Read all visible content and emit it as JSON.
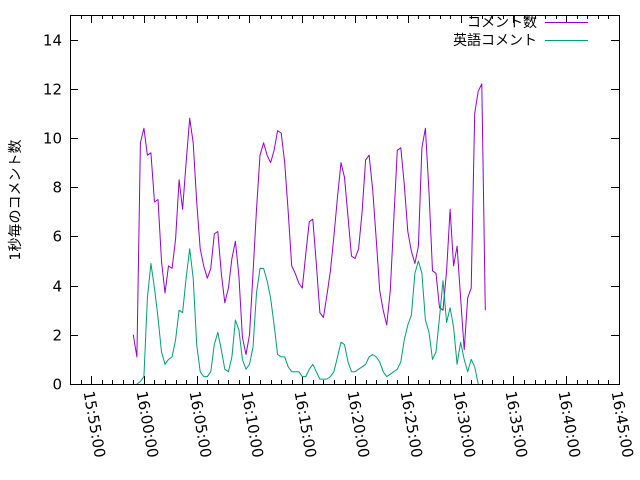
{
  "chart_data": {
    "type": "line",
    "title": "",
    "xlabel": "",
    "ylabel": "1秒毎のコメント数",
    "xlim": [
      "15:53:00",
      "16:45:00"
    ],
    "ylim": [
      0,
      15
    ],
    "x_ticks": [
      "15:55:00",
      "16:00:00",
      "16:05:00",
      "16:10:00",
      "16:15:00",
      "16:20:00",
      "16:25:00",
      "16:30:00",
      "16:35:00",
      "16:40:00",
      "16:45:00"
    ],
    "y_ticks": [
      0,
      2,
      4,
      6,
      8,
      10,
      12,
      14
    ],
    "grid": false,
    "legend_position": "top-right",
    "series": [
      {
        "name": "コメント数",
        "color": "#9400d3",
        "points": [
          [
            "15:59:00",
            2.0
          ],
          [
            "15:59:20",
            1.1
          ],
          [
            "15:59:40",
            9.8
          ],
          [
            "16:00:00",
            10.4
          ],
          [
            "16:00:20",
            9.3
          ],
          [
            "16:00:40",
            9.4
          ],
          [
            "16:01:00",
            7.4
          ],
          [
            "16:01:20",
            7.5
          ],
          [
            "16:01:40",
            5.0
          ],
          [
            "16:02:00",
            3.7
          ],
          [
            "16:02:20",
            4.8
          ],
          [
            "16:02:40",
            4.7
          ],
          [
            "16:03:00",
            5.9
          ],
          [
            "16:03:20",
            8.3
          ],
          [
            "16:03:40",
            7.1
          ],
          [
            "16:04:00",
            9.0
          ],
          [
            "16:04:20",
            10.8
          ],
          [
            "16:04:40",
            9.8
          ],
          [
            "16:05:00",
            7.4
          ],
          [
            "16:05:20",
            5.5
          ],
          [
            "16:05:40",
            4.8
          ],
          [
            "16:06:00",
            4.3
          ],
          [
            "16:06:20",
            4.7
          ],
          [
            "16:06:40",
            6.1
          ],
          [
            "16:07:00",
            6.2
          ],
          [
            "16:07:20",
            4.5
          ],
          [
            "16:07:40",
            3.3
          ],
          [
            "16:08:00",
            3.9
          ],
          [
            "16:08:20",
            5.1
          ],
          [
            "16:08:40",
            5.8
          ],
          [
            "16:09:00",
            4.4
          ],
          [
            "16:09:20",
            1.9
          ],
          [
            "16:09:40",
            1.2
          ],
          [
            "16:10:00",
            2.0
          ],
          [
            "16:10:20",
            4.5
          ],
          [
            "16:10:40",
            7.1
          ],
          [
            "16:11:00",
            9.3
          ],
          [
            "16:11:20",
            9.8
          ],
          [
            "16:11:40",
            9.3
          ],
          [
            "16:12:00",
            9.0
          ],
          [
            "16:12:20",
            9.5
          ],
          [
            "16:12:40",
            10.3
          ],
          [
            "16:13:00",
            10.2
          ],
          [
            "16:13:20",
            9.0
          ],
          [
            "16:13:40",
            7.0
          ],
          [
            "16:14:00",
            4.8
          ],
          [
            "16:14:20",
            4.5
          ],
          [
            "16:14:40",
            4.1
          ],
          [
            "16:15:00",
            3.9
          ],
          [
            "16:15:20",
            5.3
          ],
          [
            "16:15:40",
            6.6
          ],
          [
            "16:16:00",
            6.7
          ],
          [
            "16:16:20",
            4.9
          ],
          [
            "16:16:40",
            2.9
          ],
          [
            "16:17:00",
            2.7
          ],
          [
            "16:17:20",
            3.6
          ],
          [
            "16:17:40",
            4.6
          ],
          [
            "16:18:00",
            6.0
          ],
          [
            "16:18:20",
            7.6
          ],
          [
            "16:18:40",
            9.0
          ],
          [
            "16:19:00",
            8.4
          ],
          [
            "16:19:20",
            6.8
          ],
          [
            "16:19:40",
            5.2
          ],
          [
            "16:20:00",
            5.1
          ],
          [
            "16:20:20",
            5.5
          ],
          [
            "16:20:40",
            7.0
          ],
          [
            "16:21:00",
            9.1
          ],
          [
            "16:21:20",
            9.3
          ],
          [
            "16:21:40",
            7.9
          ],
          [
            "16:22:00",
            5.9
          ],
          [
            "16:22:20",
            3.8
          ],
          [
            "16:22:40",
            3.0
          ],
          [
            "16:23:00",
            2.4
          ],
          [
            "16:23:20",
            3.8
          ],
          [
            "16:23:40",
            6.7
          ],
          [
            "16:24:00",
            9.5
          ],
          [
            "16:24:20",
            9.6
          ],
          [
            "16:24:40",
            8.1
          ],
          [
            "16:25:00",
            6.2
          ],
          [
            "16:25:20",
            5.4
          ],
          [
            "16:25:40",
            4.9
          ],
          [
            "16:26:00",
            5.6
          ],
          [
            "16:26:20",
            9.6
          ],
          [
            "16:26:40",
            10.4
          ],
          [
            "16:27:00",
            7.8
          ],
          [
            "16:27:20",
            4.6
          ],
          [
            "16:27:40",
            4.5
          ],
          [
            "16:28:00",
            3.1
          ],
          [
            "16:28:20",
            3.0
          ],
          [
            "16:28:40",
            4.6
          ],
          [
            "16:29:00",
            7.1
          ],
          [
            "16:29:20",
            4.8
          ],
          [
            "16:29:40",
            5.6
          ],
          [
            "16:30:00",
            3.5
          ],
          [
            "16:30:20",
            1.4
          ],
          [
            "16:30:40",
            3.5
          ],
          [
            "16:31:00",
            3.9
          ],
          [
            "16:31:20",
            11.0
          ],
          [
            "16:31:40",
            11.9
          ],
          [
            "16:32:00",
            12.2
          ],
          [
            "16:32:20",
            3.0
          ]
        ]
      },
      {
        "name": "英語コメント",
        "color": "#009e73",
        "points": [
          [
            "15:59:20",
            0.0
          ],
          [
            "15:59:40",
            0.1
          ],
          [
            "16:00:00",
            0.3
          ],
          [
            "16:00:20",
            3.5
          ],
          [
            "16:00:40",
            4.9
          ],
          [
            "16:01:00",
            3.9
          ],
          [
            "16:01:20",
            2.7
          ],
          [
            "16:01:40",
            1.3
          ],
          [
            "16:02:00",
            0.8
          ],
          [
            "16:02:20",
            1.0
          ],
          [
            "16:02:40",
            1.1
          ],
          [
            "16:03:00",
            1.8
          ],
          [
            "16:03:20",
            3.0
          ],
          [
            "16:03:40",
            2.9
          ],
          [
            "16:04:00",
            4.3
          ],
          [
            "16:04:20",
            5.5
          ],
          [
            "16:04:40",
            4.3
          ],
          [
            "16:05:00",
            1.6
          ],
          [
            "16:05:20",
            0.5
          ],
          [
            "16:05:40",
            0.3
          ],
          [
            "16:06:00",
            0.3
          ],
          [
            "16:06:20",
            0.5
          ],
          [
            "16:06:40",
            1.6
          ],
          [
            "16:07:00",
            2.1
          ],
          [
            "16:07:20",
            1.4
          ],
          [
            "16:07:40",
            0.6
          ],
          [
            "16:08:00",
            0.5
          ],
          [
            "16:08:20",
            1.1
          ],
          [
            "16:08:40",
            2.6
          ],
          [
            "16:09:00",
            2.2
          ],
          [
            "16:09:20",
            1.0
          ],
          [
            "16:09:40",
            0.6
          ],
          [
            "16:10:00",
            0.8
          ],
          [
            "16:10:20",
            1.5
          ],
          [
            "16:10:40",
            3.7
          ],
          [
            "16:11:00",
            4.7
          ],
          [
            "16:11:20",
            4.7
          ],
          [
            "16:11:40",
            4.2
          ],
          [
            "16:12:00",
            3.5
          ],
          [
            "16:12:20",
            2.4
          ],
          [
            "16:12:40",
            1.2
          ],
          [
            "16:13:00",
            1.1
          ],
          [
            "16:13:20",
            1.1
          ],
          [
            "16:13:40",
            0.7
          ],
          [
            "16:14:00",
            0.5
          ],
          [
            "16:14:20",
            0.5
          ],
          [
            "16:14:40",
            0.5
          ],
          [
            "16:15:00",
            0.3
          ],
          [
            "16:15:20",
            0.3
          ],
          [
            "16:15:40",
            0.6
          ],
          [
            "16:16:00",
            0.8
          ],
          [
            "16:16:20",
            0.5
          ],
          [
            "16:16:40",
            0.2
          ],
          [
            "16:17:00",
            0.2
          ],
          [
            "16:17:20",
            0.2
          ],
          [
            "16:17:40",
            0.3
          ],
          [
            "16:18:00",
            0.5
          ],
          [
            "16:18:20",
            1.1
          ],
          [
            "16:18:40",
            1.7
          ],
          [
            "16:19:00",
            1.6
          ],
          [
            "16:19:20",
            0.9
          ],
          [
            "16:19:40",
            0.5
          ],
          [
            "16:20:00",
            0.5
          ],
          [
            "16:20:20",
            0.6
          ],
          [
            "16:20:40",
            0.7
          ],
          [
            "16:21:00",
            0.8
          ],
          [
            "16:21:20",
            1.1
          ],
          [
            "16:21:40",
            1.2
          ],
          [
            "16:22:00",
            1.1
          ],
          [
            "16:22:20",
            0.9
          ],
          [
            "16:22:40",
            0.5
          ],
          [
            "16:23:00",
            0.3
          ],
          [
            "16:23:20",
            0.4
          ],
          [
            "16:23:40",
            0.5
          ],
          [
            "16:24:00",
            0.6
          ],
          [
            "16:24:20",
            0.9
          ],
          [
            "16:24:40",
            1.8
          ],
          [
            "16:25:00",
            2.4
          ],
          [
            "16:25:20",
            2.8
          ],
          [
            "16:25:40",
            4.5
          ],
          [
            "16:26:00",
            5.0
          ],
          [
            "16:26:20",
            4.5
          ],
          [
            "16:26:40",
            2.6
          ],
          [
            "16:27:00",
            2.1
          ],
          [
            "16:27:20",
            1.0
          ],
          [
            "16:27:40",
            1.3
          ],
          [
            "16:28:00",
            2.7
          ],
          [
            "16:28:20",
            4.2
          ],
          [
            "16:28:40",
            2.5
          ],
          [
            "16:29:00",
            3.1
          ],
          [
            "16:29:20",
            2.3
          ],
          [
            "16:29:40",
            0.8
          ],
          [
            "16:30:00",
            1.7
          ],
          [
            "16:30:20",
            1.0
          ],
          [
            "16:30:40",
            0.5
          ],
          [
            "16:31:00",
            1.0
          ],
          [
            "16:31:20",
            0.7
          ],
          [
            "16:31:40",
            0.0
          ]
        ]
      }
    ]
  }
}
